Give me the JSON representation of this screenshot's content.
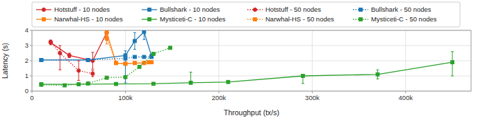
{
  "chart_data": {
    "type": "line",
    "x_label": "Throughput (tx/s)",
    "y_label": "Latency (s)",
    "xlim": [
      0,
      470000
    ],
    "ylim": [
      0,
      4.0
    ],
    "xticks": [
      0,
      {
        "value": 100000,
        "label": "100k"
      },
      {
        "value": 200000,
        "label": "200k"
      },
      {
        "value": 300000,
        "label": "300k"
      },
      {
        "value": 400000,
        "label": "400k"
      }
    ],
    "yticks": [
      0,
      1,
      2,
      3,
      4
    ],
    "grid": true,
    "legend": "top",
    "series": [
      {
        "name": "Hotstuff - 10 nodes",
        "color": "#d62728",
        "line_style": "solid",
        "marker": "circle",
        "x": [
          20000,
          40000,
          65000,
          80000
        ],
        "values": [
          3.2,
          2.35,
          2.0,
          3.85
        ],
        "error_low": [
          0.15,
          0.15,
          0.55,
          0.5
        ],
        "error_high": [
          0.15,
          0.15,
          0.55,
          0.1
        ]
      },
      {
        "name": "Narwhal-HS - 10 nodes",
        "color": "#ff7f0e",
        "line_style": "solid",
        "marker": "square",
        "x": [
          80000,
          90000,
          100000,
          110000,
          120000,
          125000
        ],
        "values": [
          3.85,
          1.85,
          1.8,
          1.85,
          1.85,
          1.9
        ],
        "error_low": [
          0.5,
          0.08,
          0.08,
          0.08,
          0.08,
          0.08
        ],
        "error_high": [
          0.1,
          0.08,
          0.08,
          0.08,
          0.08,
          0.08
        ]
      },
      {
        "name": "Bullshark - 10 nodes",
        "color": "#1f77b4",
        "line_style": "solid",
        "marker": "square",
        "x": [
          10000,
          60000,
          100000,
          110000,
          120000,
          128000
        ],
        "values": [
          2.05,
          2.05,
          2.35,
          3.3,
          3.9,
          2.3
        ],
        "error_low": [
          0.05,
          0.05,
          1.8,
          0.55,
          0.5,
          0.1
        ],
        "error_high": [
          0.05,
          0.05,
          0.3,
          0.55,
          0.1,
          0.1
        ]
      },
      {
        "name": "Mysticeti-C - 10 nodes",
        "color": "#2ca02c",
        "line_style": "solid",
        "marker": "square",
        "x": [
          10000,
          50000,
          90000,
          130000,
          170000,
          210000,
          290000,
          370000,
          450000
        ],
        "values": [
          0.45,
          0.45,
          0.47,
          0.48,
          0.55,
          0.6,
          1.0,
          1.1,
          1.9
        ],
        "error_low": [
          0.04,
          0.04,
          0.04,
          0.04,
          0.04,
          0.04,
          0.5,
          0.3,
          0.9
        ],
        "error_high": [
          0.04,
          0.04,
          0.04,
          0.04,
          0.7,
          0.04,
          0.04,
          0.3,
          0.7
        ]
      },
      {
        "name": "Hotstuff - 50 nodes",
        "color": "#d62728",
        "line_style": "dotted",
        "marker": "circle",
        "x": [
          20000,
          30000,
          50000,
          65000
        ],
        "values": [
          3.25,
          2.5,
          1.35,
          1.15
        ],
        "error_low": [
          0.1,
          1.1,
          0.65,
          0.2
        ],
        "error_high": [
          0.1,
          0.5,
          0.65,
          0.2
        ]
      },
      {
        "name": "Narwhal-HS - 50 nodes",
        "color": "#ff7f0e",
        "line_style": "dotted",
        "marker": "square",
        "x": [
          80000,
          90000,
          100000,
          110000,
          120000,
          128000
        ],
        "values": [
          3.5,
          1.85,
          1.8,
          1.85,
          1.85,
          1.9
        ],
        "error_low": [
          0.4,
          0.08,
          0.08,
          0.08,
          0.08,
          0.08
        ],
        "error_high": [
          0.1,
          0.08,
          0.08,
          0.08,
          0.08,
          0.08
        ]
      },
      {
        "name": "Bullshark - 50 nodes",
        "color": "#1f77b4",
        "line_style": "dotted",
        "marker": "square",
        "x": [
          10000,
          60000,
          100000,
          110000,
          120000,
          128000
        ],
        "values": [
          2.05,
          2.05,
          2.15,
          2.25,
          2.25,
          2.25
        ],
        "error_low": [
          0.05,
          0.05,
          0.05,
          0.05,
          0.05,
          0.05
        ],
        "error_high": [
          0.05,
          0.05,
          0.05,
          0.05,
          0.05,
          0.05
        ]
      },
      {
        "name": "Mysticeti-C - 50 nodes",
        "color": "#2ca02c",
        "line_style": "dotted",
        "marker": "square",
        "x": [
          10000,
          35000,
          60000,
          80000,
          100000,
          115000,
          130000,
          148000
        ],
        "values": [
          0.42,
          0.38,
          0.5,
          0.88,
          0.92,
          1.6,
          2.45,
          2.85
        ],
        "error_low": [
          0.04,
          0.04,
          0.04,
          0.04,
          0.04,
          0.04,
          0.04,
          0.04
        ],
        "error_high": [
          0.04,
          0.04,
          0.04,
          0.04,
          0.04,
          0.04,
          0.04,
          0.04
        ]
      }
    ]
  }
}
